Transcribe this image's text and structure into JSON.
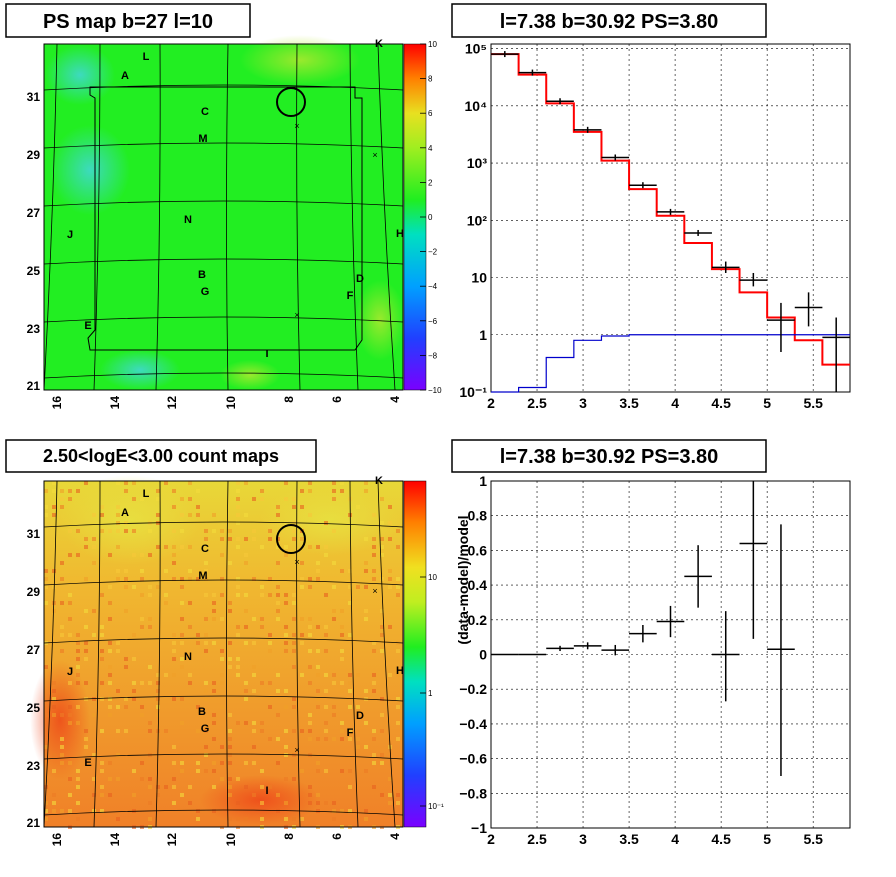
{
  "panels": {
    "ps_map": {
      "title": "PS map b=27 l=10",
      "colorbar_ticks": [
        "10",
        "8",
        "6",
        "4",
        "2",
        "0",
        "−2",
        "−4",
        "−6",
        "−8",
        "−10"
      ],
      "y_ticks": [
        "31",
        "29",
        "27",
        "25",
        "23",
        "21"
      ],
      "x_ticks": [
        "16",
        "14",
        "12",
        "10",
        "8",
        "6",
        "4"
      ],
      "labels": [
        "L",
        "K",
        "A",
        "C",
        "M",
        "N",
        "J",
        "H",
        "B",
        "G",
        "D",
        "F",
        "E",
        "I"
      ],
      "colors": {
        "background": "#22ee22",
        "cyan_patch": "#44ddcc",
        "yellow_patch": "#aaee33"
      }
    },
    "spectrum": {
      "title": "l=7.38 b=30.92 PS=3.80",
      "y_ticks": [
        "10⁵",
        "10⁴",
        "10³",
        "10²",
        "10",
        "1",
        "10⁻¹"
      ],
      "x_ticks": [
        "2",
        "2.5",
        "3",
        "3.5",
        "4",
        "4.5",
        "5",
        "5.5"
      ]
    },
    "count_map": {
      "title": "2.50<logE<3.00 count maps",
      "colorbar_ticks": [
        "10",
        "1",
        "10⁻¹"
      ],
      "y_ticks": [
        "31",
        "29",
        "27",
        "25",
        "23",
        "21"
      ],
      "x_ticks": [
        "16",
        "14",
        "12",
        "10",
        "8",
        "6",
        "4"
      ],
      "labels": [
        "L",
        "K",
        "A",
        "C",
        "M",
        "N",
        "J",
        "H",
        "B",
        "G",
        "D",
        "F",
        "E",
        "I"
      ],
      "colors": {
        "background": "#f0a030",
        "yellow_patch": "#e8d030",
        "red_patch": "#ee5020"
      }
    },
    "residual": {
      "title": "l=7.38 b=30.92 PS=3.80",
      "ylabel": "(data-model)/model",
      "y_ticks": [
        "1",
        "0.8",
        "0.6",
        "0.4",
        "0.2",
        "0",
        "−0.2",
        "−0.4",
        "−0.6",
        "−0.8",
        "−1"
      ],
      "x_ticks": [
        "2",
        "2.5",
        "3",
        "3.5",
        "4",
        "4.5",
        "5",
        "5.5"
      ]
    }
  },
  "chart_data": [
    {
      "type": "heatmap",
      "title": "PS map b=27 l=10",
      "xlim": [
        16.5,
        3.8
      ],
      "ylim": [
        21,
        33
      ],
      "zlim": [
        -10,
        10
      ],
      "colorbar_ticks": [
        10,
        8,
        6,
        4,
        2,
        0,
        -2,
        -4,
        -6,
        -8,
        -10
      ],
      "marker_circle": {
        "l": 7.38,
        "b": 30.92
      }
    },
    {
      "type": "line",
      "title": "l=7.38 b=30.92 PS=3.80",
      "log_y": true,
      "xlim": [
        2,
        5.9
      ],
      "ylim": [
        0.1,
        120000
      ],
      "bin_edges": [
        2.0,
        2.3,
        2.6,
        2.9,
        3.2,
        3.5,
        3.8,
        4.1,
        4.4,
        4.7,
        5.0,
        5.3,
        5.6,
        5.9
      ],
      "series": [
        {
          "color": "#ff0000",
          "values": [
            80000,
            35000,
            11000,
            3500,
            1100,
            350,
            120,
            40,
            14,
            5.5,
            2.0,
            0.8,
            0.3
          ]
        },
        {
          "color": "#0000cc",
          "values": [
            0.1,
            0.12,
            0.4,
            0.8,
            0.95,
            1.0,
            1.0,
            1.0,
            1.0,
            1.0,
            1.0,
            1.0,
            1.0
          ]
        },
        {
          "color": "#000000",
          "points": [
            [
              2.15,
              80000
            ],
            [
              2.45,
              38000
            ],
            [
              2.75,
              12000
            ],
            [
              3.05,
              3800
            ],
            [
              3.35,
              1250
            ],
            [
              3.65,
              410
            ],
            [
              3.95,
              140
            ],
            [
              4.25,
              60
            ],
            [
              4.55,
              15
            ],
            [
              4.85,
              9
            ],
            [
              5.15,
              1.8
            ],
            [
              5.45,
              3
            ],
            [
              5.75,
              0.9
            ]
          ],
          "yerr_lo": [
            0,
            0,
            0,
            0,
            0,
            0,
            0,
            0,
            3,
            2,
            1.3,
            1.6,
            0.88
          ],
          "yerr_hi": [
            0,
            0,
            0,
            0,
            0,
            0,
            0,
            0,
            4,
            3,
            1.8,
            2.5,
            1.1
          ]
        }
      ]
    },
    {
      "type": "heatmap",
      "title": "2.50<logE<3.00 count maps",
      "xlim": [
        16.5,
        3.8
      ],
      "ylim": [
        21,
        33
      ],
      "zlog": true,
      "colorbar_ticks": [
        "10",
        "1",
        "10⁻¹"
      ],
      "marker_circle": {
        "l": 7.38,
        "b": 30.92
      }
    },
    {
      "type": "scatter",
      "title": "l=7.38 b=30.92 PS=3.80",
      "ylabel": "(data-model)/model",
      "xlim": [
        2,
        5.9
      ],
      "ylim": [
        -1,
        1
      ],
      "points": [
        {
          "x": 2.15,
          "y": 0.0,
          "elo": 0.0,
          "ehi": 0.0
        },
        {
          "x": 2.45,
          "y": 0.0,
          "elo": 0.0,
          "ehi": 0.0
        },
        {
          "x": 2.75,
          "y": 0.035,
          "elo": 0.015,
          "ehi": 0.015
        },
        {
          "x": 3.05,
          "y": 0.05,
          "elo": 0.02,
          "ehi": 0.02
        },
        {
          "x": 3.35,
          "y": 0.025,
          "elo": 0.03,
          "ehi": 0.03
        },
        {
          "x": 3.65,
          "y": 0.12,
          "elo": 0.05,
          "ehi": 0.05
        },
        {
          "x": 3.95,
          "y": 0.19,
          "elo": 0.09,
          "ehi": 0.09
        },
        {
          "x": 4.25,
          "y": 0.45,
          "elo": 0.18,
          "ehi": 0.18
        },
        {
          "x": 4.55,
          "y": 0.0,
          "elo": 0.27,
          "ehi": 0.25
        },
        {
          "x": 4.85,
          "y": 0.64,
          "elo": 0.55,
          "ehi": 0.36
        },
        {
          "x": 5.15,
          "y": 0.03,
          "elo": 0.73,
          "ehi": 0.72
        }
      ]
    }
  ]
}
